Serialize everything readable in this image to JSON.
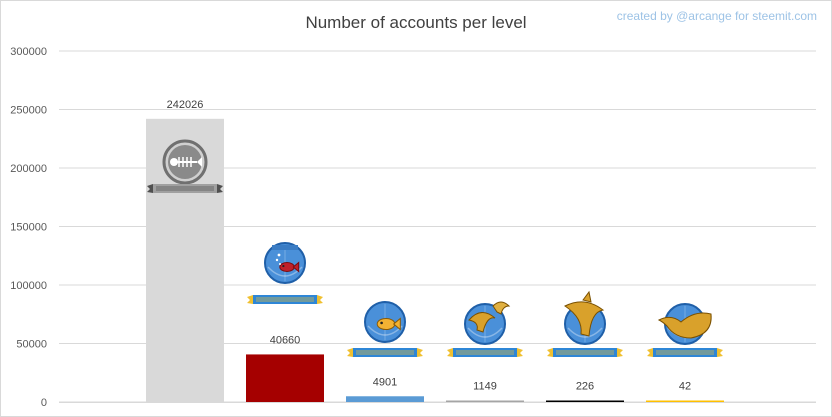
{
  "chart_data": {
    "type": "bar",
    "title": "Number of accounts per level",
    "credit": "created by @arcange for steemit.com",
    "xlabel": "",
    "ylabel": "",
    "ylim": [
      0,
      300000
    ],
    "yticks": [
      0,
      50000,
      100000,
      150000,
      200000,
      250000,
      300000
    ],
    "grid": true,
    "legend": "none",
    "categories": [
      "",
      "",
      "",
      "",
      "",
      ""
    ],
    "icons": [
      "plankton-icon",
      "minnow-icon",
      "redfish-icon",
      "dolphin-icon",
      "orca-icon",
      "whale-icon"
    ],
    "values": [
      242026,
      40660,
      4901,
      1149,
      226,
      42
    ],
    "colors": [
      "#d9d9d9",
      "#a50000",
      "#5b9bd5",
      "#a5a5a5",
      "#000000",
      "#ffc000"
    ]
  }
}
